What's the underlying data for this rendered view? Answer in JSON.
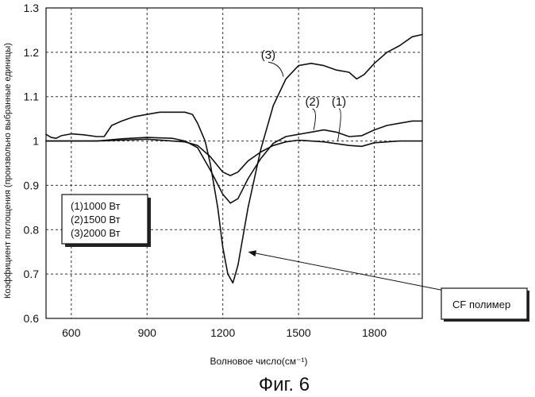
{
  "chart_data": {
    "type": "line",
    "title": "",
    "xlabel": "Волновое число(см⁻¹)",
    "ylabel": "Коэффициент поглощения (произвольно выбранные единицы)",
    "xlim": [
      500,
      1990
    ],
    "ylim": [
      0.6,
      1.3
    ],
    "x_ticks": [
      "600",
      "900",
      "1200",
      "1500",
      "1800"
    ],
    "x_tick_values": [
      600,
      900,
      1200,
      1500,
      1800
    ],
    "y_ticks": [
      "0.6",
      "0.7",
      "0.8",
      "0.9",
      "1",
      "1.1",
      "1.2",
      "1.3"
    ],
    "y_tick_values": [
      0.6,
      0.7,
      0.8,
      0.9,
      1.0,
      1.1,
      1.2,
      1.3
    ],
    "grid": true,
    "legend": {
      "placement": "left",
      "entries": [
        "(1)1000 Вт",
        "(2)1500 Вт",
        "(3)2000 Вт"
      ]
    },
    "series": [
      {
        "name": "(1)",
        "x": [
          500,
          600,
          700,
          800,
          900,
          1000,
          1050,
          1100,
          1150,
          1200,
          1230,
          1260,
          1300,
          1350,
          1400,
          1450,
          1500,
          1600,
          1700,
          1750,
          1800,
          1900,
          1990
        ],
        "y": [
          1.0,
          1.0,
          1.0,
          1.002,
          1.004,
          1.0,
          0.998,
          0.99,
          0.965,
          0.93,
          0.922,
          0.93,
          0.955,
          0.975,
          0.99,
          0.998,
          1.002,
          0.998,
          0.99,
          0.988,
          0.996,
          1.0,
          1.0
        ]
      },
      {
        "name": "(2)",
        "x": [
          500,
          600,
          700,
          800,
          900,
          1000,
          1050,
          1100,
          1150,
          1200,
          1230,
          1260,
          1300,
          1350,
          1400,
          1450,
          1500,
          1550,
          1600,
          1650,
          1700,
          1750,
          1800,
          1850,
          1900,
          1950,
          1990
        ],
        "y": [
          1.0,
          1.0,
          1.0,
          1.005,
          1.008,
          1.006,
          1.0,
          0.985,
          0.935,
          0.88,
          0.86,
          0.87,
          0.915,
          0.96,
          0.995,
          1.01,
          1.015,
          1.02,
          1.025,
          1.02,
          1.01,
          1.012,
          1.025,
          1.035,
          1.04,
          1.045,
          1.045
        ]
      },
      {
        "name": "(3)",
        "x": [
          500,
          520,
          540,
          560,
          600,
          650,
          700,
          730,
          760,
          800,
          850,
          900,
          950,
          1000,
          1050,
          1080,
          1100,
          1130,
          1150,
          1180,
          1200,
          1220,
          1240,
          1260,
          1300,
          1350,
          1400,
          1450,
          1500,
          1550,
          1600,
          1650,
          1700,
          1730,
          1760,
          1800,
          1850,
          1900,
          1950,
          1990
        ],
        "y": [
          1.015,
          1.008,
          1.006,
          1.012,
          1.016,
          1.014,
          1.01,
          1.01,
          1.035,
          1.045,
          1.055,
          1.06,
          1.065,
          1.065,
          1.065,
          1.06,
          1.04,
          1.0,
          0.95,
          0.85,
          0.76,
          0.7,
          0.68,
          0.72,
          0.85,
          0.98,
          1.08,
          1.14,
          1.17,
          1.175,
          1.17,
          1.16,
          1.155,
          1.14,
          1.15,
          1.175,
          1.2,
          1.215,
          1.235,
          1.24
        ]
      }
    ],
    "series_tags": [
      {
        "text": "(3)",
        "x": 1380,
        "y": 1.185
      },
      {
        "text": "(2)",
        "x": 1555,
        "y": 1.08
      },
      {
        "text": "(1)",
        "x": 1660,
        "y": 1.08
      }
    ],
    "annotations": [
      {
        "text": "CF полимер",
        "arrow_to": {
          "x": 1300,
          "y": 0.75
        }
      }
    ]
  },
  "caption": "Фиг. 6"
}
